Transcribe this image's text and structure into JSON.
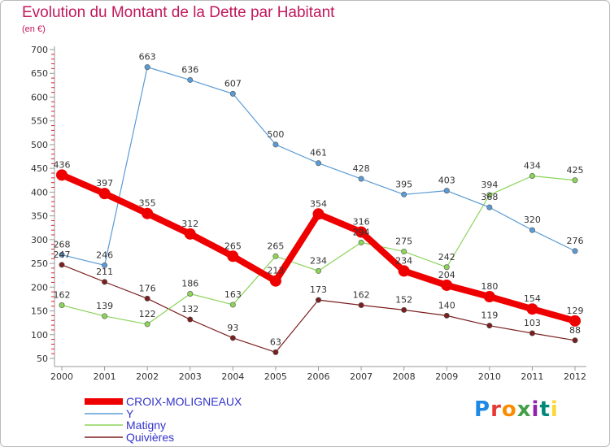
{
  "header": {
    "title": "Evolution du Montant de la Dette par Habitant",
    "subtitle": "(en €)"
  },
  "logo": {
    "text": "Proxiti",
    "letter_colors": [
      "#1e88e5",
      "#e53935",
      "#fb8c00",
      "#43a047",
      "#8e24aa",
      "#00897b",
      "#fdd835"
    ]
  },
  "chart_data": {
    "type": "line",
    "title": "Evolution du Montant de la Dette par Habitant",
    "ylabel": "(en €)",
    "x": [
      "2000",
      "2001",
      "2002",
      "2003",
      "2004",
      "2005",
      "2006",
      "2007",
      "2008",
      "2009",
      "2010",
      "2011",
      "2012"
    ],
    "yticks": [
      50,
      100,
      150,
      200,
      250,
      300,
      350,
      400,
      450,
      500,
      550,
      600,
      650,
      700
    ],
    "ylim": [
      50,
      700
    ],
    "grid": false,
    "legend_position": "bottom-left",
    "series": [
      {
        "name": "CROIX-MOLIGNEAUX",
        "color": "#ee0000",
        "values": [
          436,
          397,
          355,
          312,
          265,
          213,
          354,
          316,
          234,
          204,
          180,
          154,
          129
        ]
      },
      {
        "name": "Y",
        "color": "#5b9bd5",
        "values": [
          268,
          246,
          663,
          636,
          607,
          500,
          461,
          428,
          395,
          403,
          368,
          320,
          276
        ]
      },
      {
        "name": "Matigny",
        "color": "#8cd35a",
        "values": [
          162,
          139,
          122,
          186,
          163,
          265,
          234,
          294,
          275,
          242,
          394,
          434,
          425
        ]
      },
      {
        "name": "Quivières",
        "color": "#7a1f1f",
        "values": [
          247,
          211,
          176,
          132,
          93,
          63,
          173,
          162,
          152,
          140,
          119,
          103,
          88
        ]
      }
    ]
  }
}
